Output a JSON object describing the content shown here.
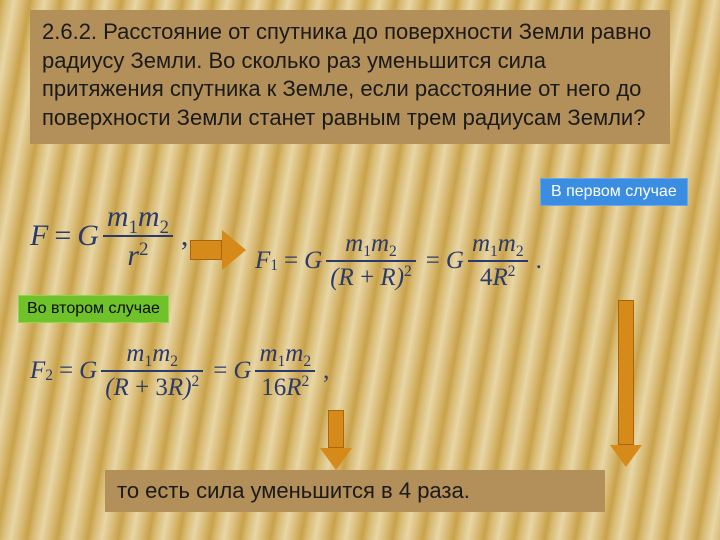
{
  "problem": "2.6.2. Расстояние от спутника до поверхности Земли равно радиусу Земли. Во сколько раз уменьшится сила притяжения спутника к Земле, если расстояние от него до поверхности Земли станет равным трем радиусам Земли?",
  "labels": {
    "case1": "В первом случае",
    "case2": "Во втором случае"
  },
  "answer": "то есть сила уменьшится в 4 раза.",
  "formulas": {
    "main": {
      "lhs": "F",
      "G": "G",
      "num_m1": "m",
      "num_s1": "1",
      "num_m2": "m",
      "num_s2": "2",
      "den_r": "r",
      "den_exp": "2",
      "tail": ","
    },
    "f1": {
      "lhs_sym": "F",
      "lhs_sub": "1",
      "G": "G",
      "num_m1": "m",
      "num_s1": "1",
      "num_m2": "m",
      "num_s2": "2",
      "den1_a": "(R",
      "den1_plus": " + ",
      "den1_b": "R)",
      "den1_exp": "2",
      "G2": "G",
      "num2_m1": "m",
      "num2_s1": "1",
      "num2_m2": "m",
      "num2_s2": "2",
      "den2_c": "4",
      "den2_R": "R",
      "den2_exp": "2",
      "tail": "."
    },
    "f2": {
      "lhs_sym": "F",
      "lhs_sub": "2",
      "G": "G",
      "num_m1": "m",
      "num_s1": "1",
      "num_m2": "m",
      "num_s2": "2",
      "den1_a": "(R",
      "den1_plus": " + 3",
      "den1_b": "R)",
      "den1_exp": "2",
      "G2": "G",
      "num2_m1": "m",
      "num2_s1": "1",
      "num2_m2": "m",
      "num2_s2": "2",
      "den2_c": "16",
      "den2_R": "R",
      "den2_exp": "2",
      "tail": ","
    }
  },
  "colors": {
    "box_bg": "#b38f5a",
    "blue_bg": "#3a8de0",
    "green_bg": "#6fc22a",
    "arrow": "#d68a1a",
    "formula": "#2a3a6a"
  }
}
